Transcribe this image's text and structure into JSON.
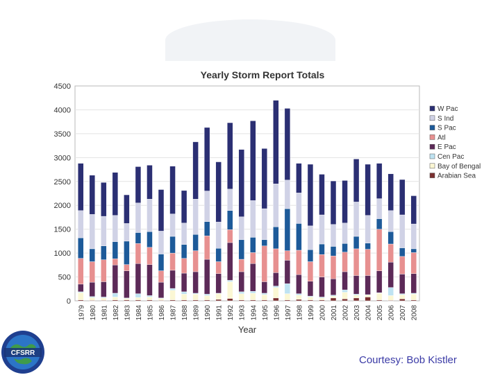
{
  "credit": "Courtesy: Bob Kistler",
  "logo": {
    "text": "CFSRR",
    "icon": "cfsrr-globe-logo"
  },
  "chart_data": {
    "type": "bar",
    "stacked": true,
    "title": "Yearly Storm Report Totals",
    "xlabel": "Year",
    "ylabel": "",
    "ylim": [
      0,
      4500
    ],
    "yticks": [
      0,
      500,
      1000,
      1500,
      2000,
      2500,
      3000,
      3500,
      4000,
      4500
    ],
    "grid": true,
    "legend_position": "right",
    "categories": [
      "1979",
      "1980",
      "1981",
      "1982",
      "1983",
      "1984",
      "1985",
      "1986",
      "1987",
      "1988",
      "1989",
      "1990",
      "1991",
      "1992",
      "1993",
      "1994",
      "1995",
      "1996",
      "1997",
      "1998",
      "1999",
      "2000",
      "2001",
      "2002",
      "2003",
      "2004",
      "2005",
      "2006",
      "2007",
      "2008"
    ],
    "series": [
      {
        "name": "Arabian Sea",
        "color": "#7a3030",
        "values": [
          20,
          10,
          10,
          20,
          20,
          20,
          20,
          10,
          20,
          20,
          20,
          20,
          30,
          50,
          20,
          20,
          20,
          60,
          20,
          30,
          20,
          20,
          60,
          40,
          60,
          80,
          20,
          10,
          40,
          20
        ]
      },
      {
        "name": "Bay of Bengal",
        "color": "#fbf7d4",
        "values": [
          150,
          60,
          50,
          60,
          30,
          50,
          60,
          40,
          200,
          120,
          120,
          90,
          120,
          350,
          130,
          140,
          110,
          220,
          130,
          90,
          60,
          40,
          40,
          140,
          60,
          40,
          140,
          100,
          90,
          120
        ]
      },
      {
        "name": "Cen Pac",
        "color": "#bfe3f2",
        "values": [
          20,
          20,
          20,
          80,
          10,
          80,
          30,
          10,
          40,
          50,
          20,
          30,
          10,
          30,
          40,
          40,
          30,
          30,
          210,
          30,
          20,
          20,
          20,
          50,
          20,
          10,
          10,
          170,
          20,
          20
        ]
      },
      {
        "name": "E Pac",
        "color": "#5c2a58",
        "values": [
          160,
          300,
          320,
          590,
          570,
          630,
          650,
          330,
          380,
          390,
          450,
          730,
          410,
          790,
          420,
          580,
          240,
          280,
          490,
          400,
          310,
          420,
          340,
          380,
          390,
          400,
          460,
          530,
          410,
          410
        ]
      },
      {
        "name": "Atl",
        "color": "#e79090",
        "values": [
          540,
          430,
          460,
          130,
          130,
          420,
          360,
          240,
          360,
          310,
          440,
          490,
          250,
          270,
          260,
          230,
          750,
          500,
          200,
          510,
          410,
          470,
          480,
          410,
          560,
          550,
          870,
          380,
          370,
          440
        ]
      },
      {
        "name": "S Pac",
        "color": "#1d5a99",
        "values": [
          430,
          270,
          290,
          360,
          490,
          230,
          330,
          350,
          350,
          290,
          340,
          300,
          280,
          400,
          410,
          320,
          130,
          460,
          880,
          560,
          250,
          220,
          200,
          180,
          260,
          130,
          220,
          260,
          180,
          80
        ]
      },
      {
        "name": "S Ind",
        "color": "#d0d2e6",
        "values": [
          570,
          720,
          620,
          550,
          370,
          620,
          680,
          480,
          470,
          450,
          740,
          640,
          550,
          450,
          480,
          770,
          650,
          900,
          600,
          640,
          500,
          610,
          460,
          430,
          720,
          580,
          420,
          440,
          690,
          520
        ]
      },
      {
        "name": "W Pac",
        "color": "#2b2f73",
        "values": [
          990,
          820,
          710,
          900,
          600,
          760,
          710,
          870,
          1000,
          680,
          1200,
          1330,
          1260,
          1390,
          1410,
          1670,
          1260,
          1750,
          1500,
          620,
          1290,
          850,
          910,
          890,
          900,
          1070,
          740,
          770,
          740,
          590
        ]
      }
    ]
  }
}
